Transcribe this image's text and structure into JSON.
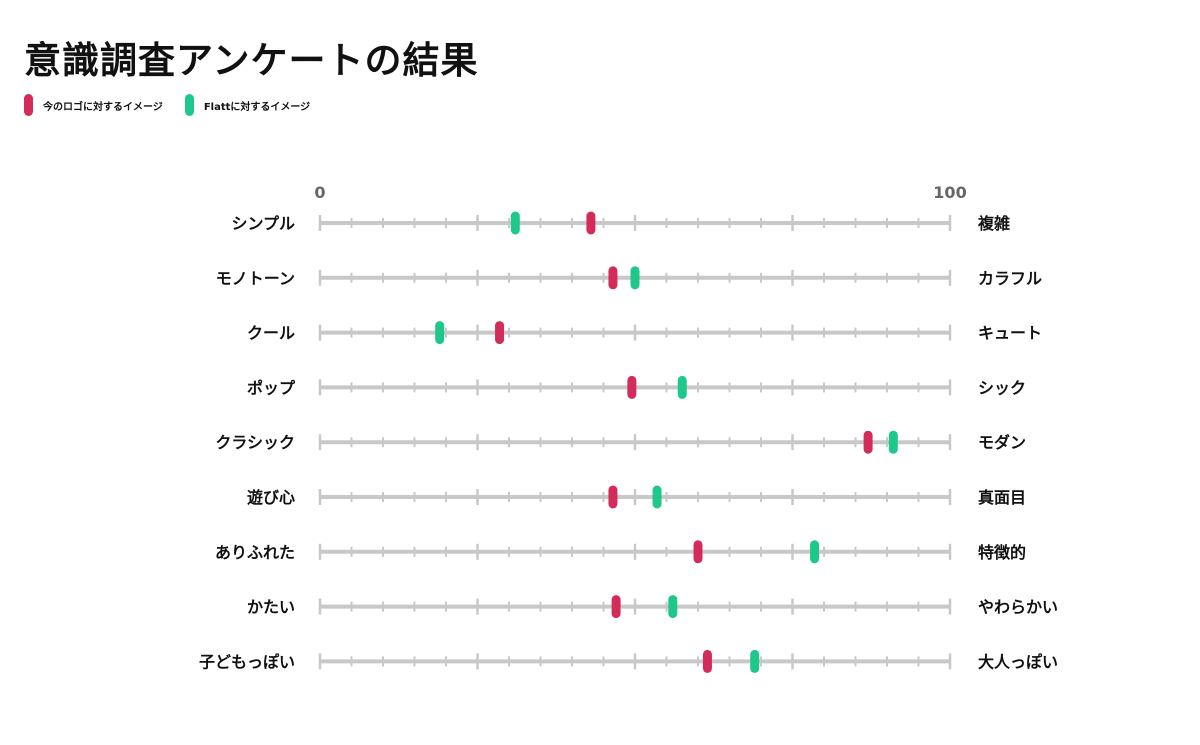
{
  "title": "意識調査アンケートの結果",
  "colors": {
    "current": "#d42c5a",
    "flatt": "#1ec88a",
    "track": "#c8c8c8",
    "axis_label": "#666666"
  },
  "chart_data": {
    "type": "scatter",
    "title": "意識調査アンケートの結果",
    "xlim": [
      0,
      100
    ],
    "x_tick_labels": [
      "0",
      "100"
    ],
    "series": [
      {
        "name": "今のロゴに対するイメージ",
        "color": "#d42c5a",
        "values": [
          43,
          46.5,
          28.5,
          49.5,
          87,
          46.5,
          60,
          47,
          61.5
        ]
      },
      {
        "name": "Flattに対するイメージ",
        "color": "#1ec88a",
        "values": [
          31,
          50,
          19,
          57.5,
          91,
          53.5,
          78.5,
          56,
          69
        ]
      }
    ],
    "rows": [
      {
        "left": "シンプル",
        "right": "複雑"
      },
      {
        "left": "モノトーン",
        "right": "カラフル"
      },
      {
        "left": "クール",
        "right": "キュート"
      },
      {
        "left": "ポップ",
        "right": "シック"
      },
      {
        "left": "クラシック",
        "right": "モダン"
      },
      {
        "left": "遊び心",
        "right": "真面目"
      },
      {
        "left": "ありふれた",
        "right": "特徴的"
      },
      {
        "left": "かたい",
        "right": "やわらかい"
      },
      {
        "left": "子どもっぽい",
        "right": "大人っぽい"
      }
    ],
    "legend_position": "top-left",
    "grid": false
  }
}
